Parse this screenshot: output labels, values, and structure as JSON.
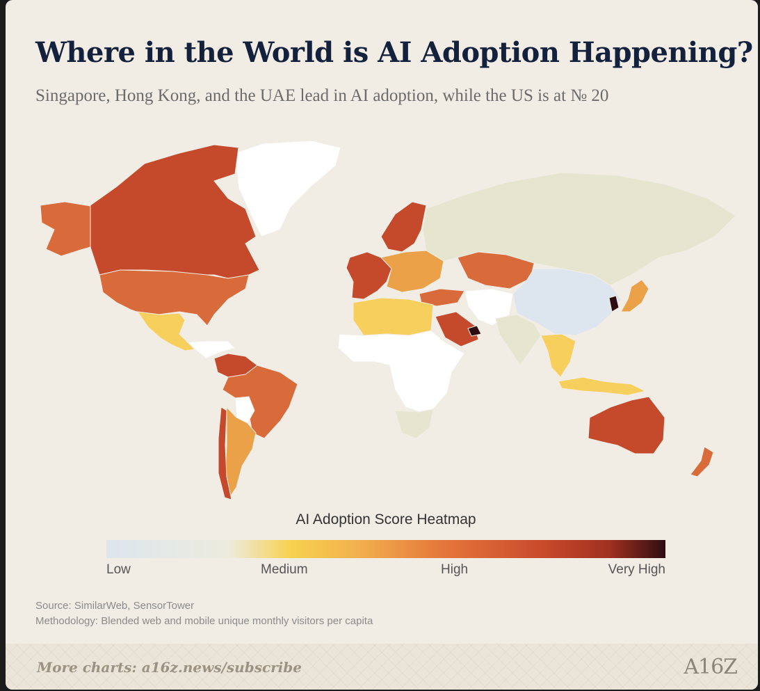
{
  "title": "Where in the World is AI Adoption Happening?",
  "subtitle": "Singapore, Hong Kong, and the UAE lead in AI adoption, while the US is at № 20",
  "legend": {
    "title": "AI Adoption Score Heatmap",
    "low": "Low",
    "medium": "Medium",
    "high": "High",
    "very_high": "Very High"
  },
  "source_line": "Source: SimilarWeb, SensorTower",
  "methodology_line": "Methodology: Blended web and mobile unique monthly visitors per capita",
  "footer": {
    "link_text": "More charts: a16z.news/subscribe",
    "logo_text": "A16Z"
  },
  "colors": {
    "no_data": "#ffffff",
    "low": "#dde6ee",
    "low_medium": "#e6e5d0",
    "medium": "#f6cf5c",
    "medium_high": "#eaa147",
    "high": "#d96a3a",
    "high_plus": "#c44a2b",
    "very_high": "#2e0d12"
  },
  "map_regions": [
    {
      "name": "canada",
      "level": "high_plus"
    },
    {
      "name": "alaska",
      "level": "high"
    },
    {
      "name": "usa",
      "level": "high"
    },
    {
      "name": "greenland",
      "level": "no_data"
    },
    {
      "name": "mexico",
      "level": "medium"
    },
    {
      "name": "central-america",
      "level": "no_data"
    },
    {
      "name": "colombia-venezuela",
      "level": "high_plus"
    },
    {
      "name": "brazil",
      "level": "high"
    },
    {
      "name": "bolivia",
      "level": "no_data"
    },
    {
      "name": "southern-cone",
      "level": "medium_high"
    },
    {
      "name": "chile",
      "level": "high_plus"
    },
    {
      "name": "scandinavia",
      "level": "high_plus"
    },
    {
      "name": "western-europe",
      "level": "high_plus"
    },
    {
      "name": "central-europe",
      "level": "medium_high"
    },
    {
      "name": "russia",
      "level": "low_medium"
    },
    {
      "name": "kazakhstan",
      "level": "high"
    },
    {
      "name": "turkey",
      "level": "high"
    },
    {
      "name": "middle-east",
      "level": "no_data"
    },
    {
      "name": "saudi-arabia",
      "level": "high_plus"
    },
    {
      "name": "uae",
      "level": "very_high"
    },
    {
      "name": "north-africa",
      "level": "medium"
    },
    {
      "name": "africa",
      "level": "no_data"
    },
    {
      "name": "southern-africa",
      "level": "low_medium"
    },
    {
      "name": "china",
      "level": "low"
    },
    {
      "name": "india",
      "level": "low_medium"
    },
    {
      "name": "japan",
      "level": "medium_high"
    },
    {
      "name": "korea",
      "level": "very_high"
    },
    {
      "name": "southeast-asia",
      "level": "medium"
    },
    {
      "name": "indonesia",
      "level": "medium"
    },
    {
      "name": "australia",
      "level": "high_plus"
    },
    {
      "name": "new-zealand",
      "level": "high"
    }
  ]
}
